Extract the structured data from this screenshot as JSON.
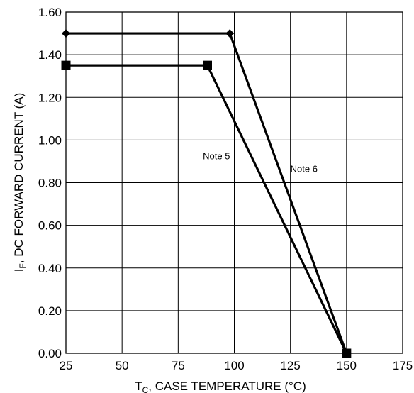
{
  "chart_data": {
    "type": "line",
    "title": "",
    "xlabel": {
      "main": "T",
      "sub": "C",
      "rest": ", CASE TEMPERATURE (°C)"
    },
    "ylabel": {
      "main": "I",
      "sub": "F",
      "rest": ", DC FORWARD CURRENT (A)"
    },
    "xlim": [
      25,
      175
    ],
    "ylim": [
      0.0,
      1.6
    ],
    "x_ticks": [
      "25",
      "50",
      "75",
      "100",
      "125",
      "150",
      "175"
    ],
    "y_ticks": [
      "0.00",
      "0.20",
      "0.40",
      "0.60",
      "0.80",
      "1.00",
      "1.20",
      "1.40",
      "1.60"
    ],
    "grid": true,
    "series": [
      {
        "marker": "diamond",
        "x": [
          25,
          98,
          150
        ],
        "y": [
          1.5,
          1.5,
          0.0
        ]
      },
      {
        "marker": "square",
        "x": [
          25,
          88,
          150
        ],
        "y": [
          1.35,
          1.35,
          0.0
        ]
      }
    ],
    "annotations": [
      {
        "text": "Note 5",
        "x": 86,
        "y": 0.91
      },
      {
        "text": "Note 6",
        "x": 125,
        "y": 0.85
      }
    ]
  }
}
